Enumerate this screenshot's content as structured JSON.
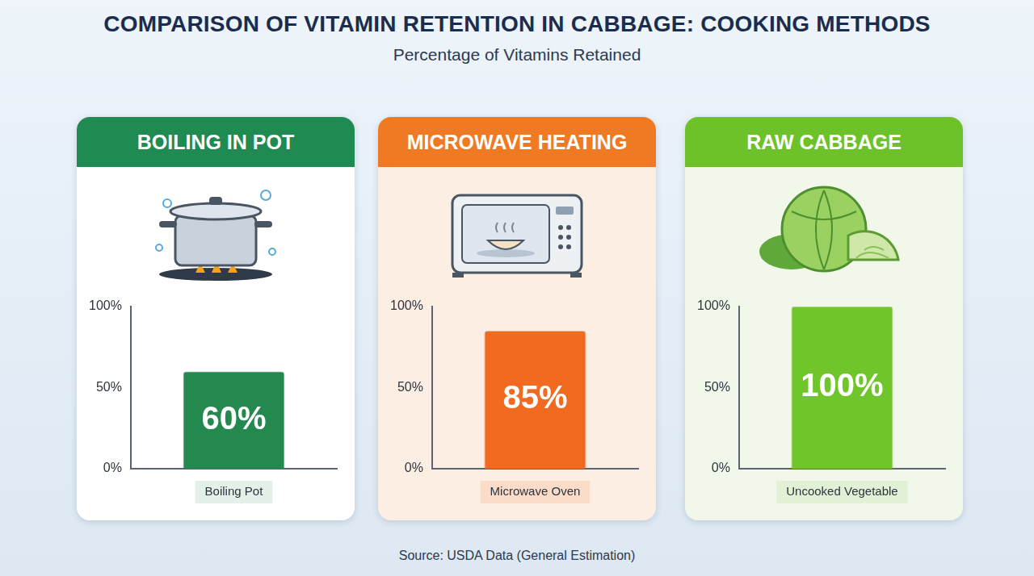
{
  "title": "COMPARISON OF VITAMIN RETENTION IN CABBAGE: COOKING METHODS",
  "subtitle": "Percentage of Vitamins Retained",
  "source": "Source: USDA Data (General Estimation)",
  "chart_data": [
    {
      "type": "bar",
      "title": "BOILING IN POT",
      "categories": [
        "Boiling Pot"
      ],
      "values": [
        60
      ],
      "value_labels": [
        "60%"
      ],
      "color": "#23894f",
      "ylim": [
        0,
        100
      ],
      "yticks": [
        {
          "value": 0,
          "label": "0%"
        },
        {
          "value": 50,
          "label": "50%"
        },
        {
          "value": 100,
          "label": "100%"
        }
      ],
      "grid": false,
      "data_labels": true
    },
    {
      "type": "bar",
      "title": "MICROWAVE HEATING",
      "categories": [
        "Microwave Oven"
      ],
      "values": [
        85
      ],
      "value_labels": [
        "85%"
      ],
      "color": "#f26a1f",
      "ylim": [
        0,
        100
      ],
      "yticks": [
        {
          "value": 0,
          "label": "0%"
        },
        {
          "value": 50,
          "label": "50%"
        },
        {
          "value": 100,
          "label": "100%"
        }
      ],
      "grid": false,
      "data_labels": true
    },
    {
      "type": "bar",
      "title": "RAW CABBAGE",
      "categories": [
        "Uncooked Vegetable"
      ],
      "values": [
        100
      ],
      "value_labels": [
        "100%"
      ],
      "color": "#6fc52a",
      "ylim": [
        0,
        100
      ],
      "yticks": [
        {
          "value": 0,
          "label": "0%"
        },
        {
          "value": 50,
          "label": "50%"
        },
        {
          "value": 100,
          "label": "100%"
        }
      ],
      "grid": false,
      "data_labels": true
    }
  ]
}
